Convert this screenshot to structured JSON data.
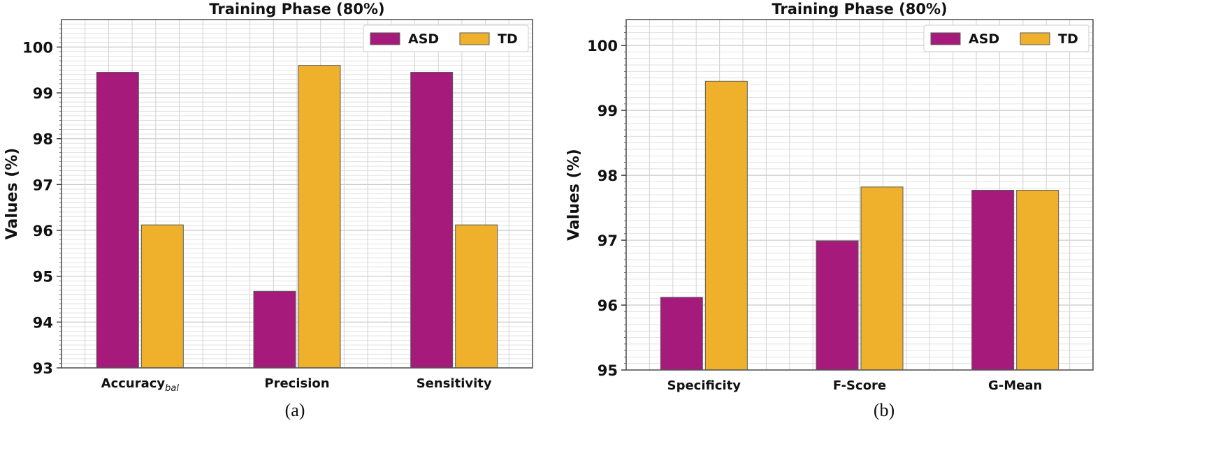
{
  "chart_data": [
    {
      "type": "bar",
      "title": "Training Phase (80%)",
      "ylabel": "Values (%)",
      "xlabel": "",
      "caption": "(a)",
      "categories": [
        {
          "main": "Accuracy",
          "sub": "bal"
        },
        {
          "main": "Precision",
          "sub": ""
        },
        {
          "main": "Sensitivity",
          "sub": ""
        }
      ],
      "series": [
        {
          "name": "ASD",
          "values": [
            99.45,
            94.67,
            99.45
          ]
        },
        {
          "name": "TD",
          "values": [
            96.12,
            99.6,
            96.12
          ]
        }
      ],
      "ylim": [
        93,
        100.6
      ],
      "yticks": [
        93,
        94,
        95,
        96,
        97,
        98,
        99,
        100
      ],
      "grid": true,
      "legend": "top-right"
    },
    {
      "type": "bar",
      "title": "Training Phase (80%)",
      "ylabel": "Values (%)",
      "xlabel": "",
      "caption": "(b)",
      "categories": [
        {
          "main": "Specificity",
          "sub": ""
        },
        {
          "main": "F-Score",
          "sub": ""
        },
        {
          "main": "G-Mean",
          "sub": ""
        }
      ],
      "series": [
        {
          "name": "ASD",
          "values": [
            96.12,
            96.99,
            97.77
          ]
        },
        {
          "name": "TD",
          "values": [
            99.45,
            97.82,
            97.77
          ]
        }
      ],
      "ylim": [
        95,
        100.4
      ],
      "yticks": [
        95,
        96,
        97,
        98,
        99,
        100
      ],
      "grid": true,
      "legend": "top-right"
    }
  ],
  "colors": {
    "ASD": "#a51a7a",
    "TD": "#efb12b"
  }
}
